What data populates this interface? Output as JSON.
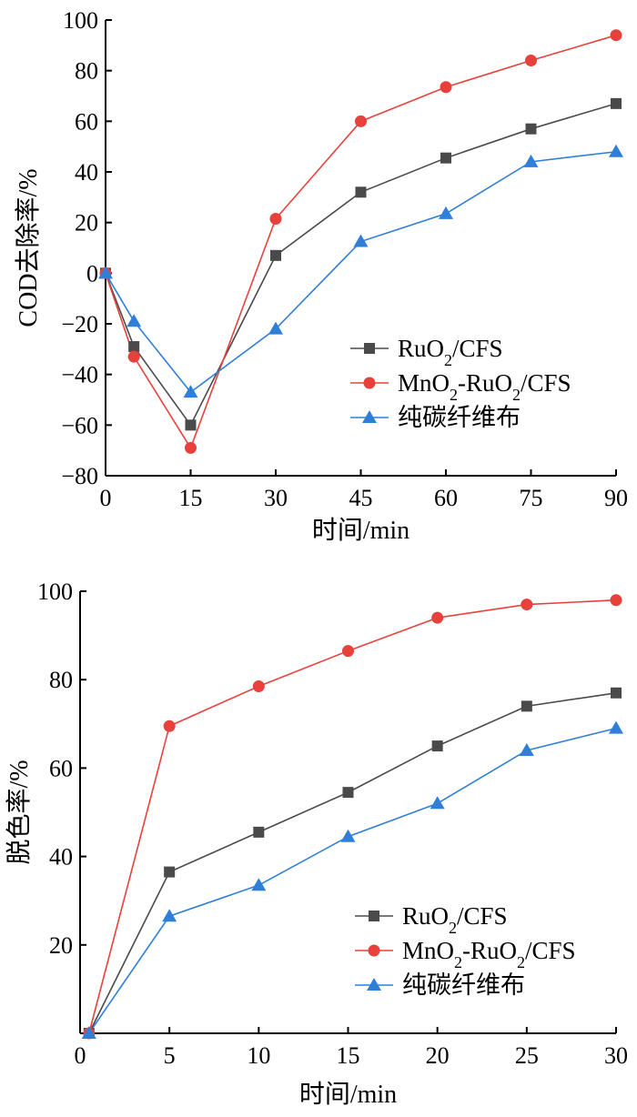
{
  "chart_data": [
    {
      "type": "line",
      "xlabel": "时间/min",
      "ylabel": "COD去除率/%",
      "xlim": [
        0,
        90
      ],
      "ylim": [
        -80,
        100
      ],
      "xticks": [
        "0",
        "15",
        "30",
        "45",
        "60",
        "75",
        "90"
      ],
      "yticks": [
        "100",
        "80",
        "60",
        "40",
        "20",
        "0",
        "−20",
        "−40",
        "−60",
        "−80"
      ],
      "grid": false,
      "legend_position": "lower-right",
      "x": [
        0,
        5,
        15,
        30,
        45,
        60,
        75,
        90
      ],
      "series": [
        {
          "name": "RuO2/CFS",
          "color": "#4a4a4a",
          "marker": "square",
          "values": [
            0,
            -29,
            -60,
            7,
            32,
            45.5,
            57,
            67
          ]
        },
        {
          "name": "MnO2-RuO2/CFS",
          "color": "#e8413c",
          "marker": "circle",
          "values": [
            0,
            -33,
            -69,
            21.5,
            60,
            73.5,
            84,
            94
          ]
        },
        {
          "name": "纯碳纤维布",
          "color": "#2f7fd8",
          "marker": "triangle",
          "values": [
            0,
            -19,
            -47,
            -22,
            12.5,
            23.5,
            44,
            48
          ]
        }
      ]
    },
    {
      "type": "line",
      "xlabel": "时间/min",
      "ylabel": "脱色率/%",
      "xlim": [
        0,
        30
      ],
      "ylim": [
        0,
        100
      ],
      "xticks": [
        "0",
        "5",
        "10",
        "15",
        "20",
        "25",
        "30"
      ],
      "yticks": [
        "100",
        "80",
        "60",
        "40",
        "20"
      ],
      "grid": false,
      "legend_position": "lower-right",
      "x": [
        0.5,
        5,
        10,
        15,
        20,
        25,
        30
      ],
      "series": [
        {
          "name": "RuO2/CFS",
          "color": "#4a4a4a",
          "marker": "square",
          "values": [
            0,
            36.5,
            45.5,
            54.5,
            65,
            74,
            77
          ]
        },
        {
          "name": "MnO2-RuO2/CFS",
          "color": "#e8413c",
          "marker": "circle",
          "values": [
            0,
            69.5,
            78.5,
            86.5,
            94,
            97,
            98
          ]
        },
        {
          "name": "纯碳纤维布",
          "color": "#2f7fd8",
          "marker": "triangle",
          "values": [
            0,
            26.5,
            33.5,
            44.5,
            52,
            64,
            69
          ]
        }
      ]
    }
  ]
}
